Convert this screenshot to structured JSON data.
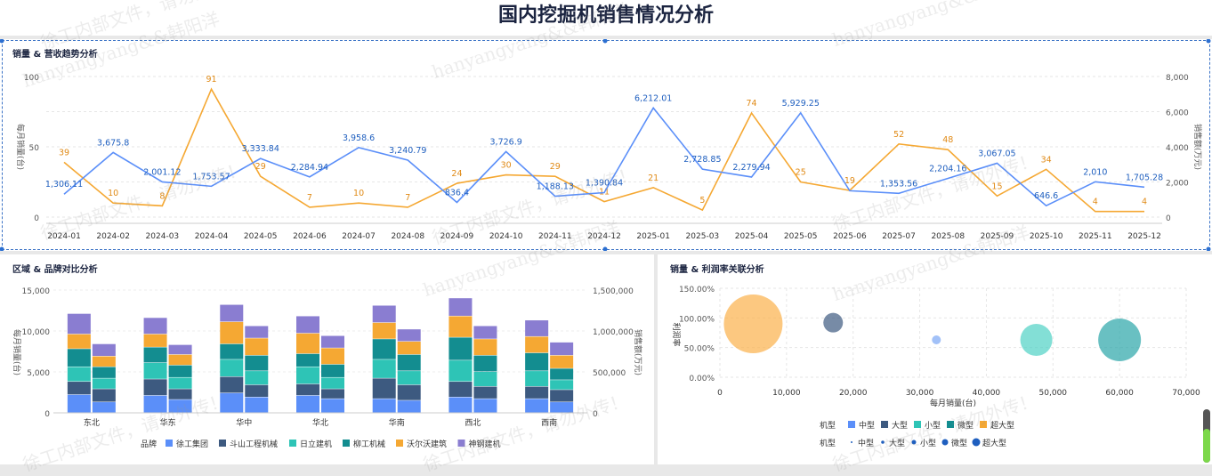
{
  "page": {
    "title": "国内挖掘机销售情况分析"
  },
  "panels": {
    "trend": {
      "title": "销量 & 营收趋势分析",
      "y_left_label": "每月销量(台)",
      "y_right_label": "销售额(万元)"
    },
    "region": {
      "title": "区域 & 品牌对比分析",
      "y_left_label": "每月销量(台)",
      "y_right_label": "销售额(万元)",
      "legend_title": "品牌"
    },
    "bubble": {
      "title": "销量 & 利润率关联分析",
      "x_label": "每月销量(台)",
      "y_label": "利润率",
      "legend_title": "机型"
    }
  },
  "watermarks": [
    "徐工内部文件，请勿外传！",
    "hanyangyang&&韩阳洋"
  ],
  "colors": {
    "volume": "#f5a833",
    "revenue": "#5b8ff9"
  },
  "chart_data": [
    {
      "type": "line",
      "title": "销量 & 营收趋势分析",
      "categories": [
        "2024-01",
        "2024-02",
        "2024-03",
        "2024-04",
        "2024-05",
        "2024-06",
        "2024-07",
        "2024-08",
        "2024-09",
        "2024-10",
        "2024-11",
        "2024-12",
        "2025-01",
        "2025-03",
        "2025-04",
        "2025-05",
        "2025-06",
        "2025-07",
        "2025-08",
        "2025-09",
        "2025-10",
        "2025-11",
        "2025-12"
      ],
      "ylabel": "每月销量(台)",
      "y2label": "销售额(万元)",
      "ylim": [
        0,
        100
      ],
      "y2lim": [
        0,
        8000
      ],
      "yticks": [
        "0",
        "50",
        "100"
      ],
      "y2ticks": [
        "0",
        "2,000",
        "4,000",
        "6,000",
        "8,000"
      ],
      "series": [
        {
          "axis": "left",
          "color": "#f5a833",
          "values": [
            39,
            10,
            8,
            91,
            29,
            7,
            10,
            7,
            24,
            30,
            29,
            11,
            21,
            5,
            74,
            25,
            19,
            52,
            48,
            15,
            34,
            4,
            4
          ],
          "labels": [
            "39",
            "10",
            "8",
            "91",
            "29",
            "7",
            "10",
            "7",
            "24",
            "30",
            "29",
            "11",
            "21",
            "5",
            "74",
            "25",
            "19",
            "52",
            "48",
            "15",
            "34",
            "4",
            "4"
          ]
        },
        {
          "axis": "right",
          "color": "#5b8ff9",
          "values": [
            1306.11,
            3675.8,
            2001.12,
            1753.57,
            3333.84,
            2284.94,
            3958.6,
            3240.79,
            836.4,
            3726.9,
            1188.13,
            1390.84,
            6212.01,
            2728.85,
            2279.94,
            5929.25,
            1500,
            1353.56,
            2204.16,
            3067.05,
            646.6,
            2010,
            1705.28
          ],
          "labels": [
            "1,306.11",
            "3,675.8",
            "2,001.12",
            "1,753.57",
            "3,333.84",
            "2,284.94",
            "3,958.6",
            "3,240.79",
            "836.4",
            "3,726.9",
            "1,188.13",
            "1,390.84",
            "6,212.01",
            "2,728.85",
            "2,279.94",
            "5,929.25",
            "",
            "1,353.56",
            "2,204.16",
            "3,067.05",
            "646.6",
            "2,010",
            "1,705.28"
          ]
        }
      ]
    },
    {
      "type": "bar",
      "title": "区域 & 品牌对比分析",
      "categories": [
        "东北",
        "华东",
        "华中",
        "华北",
        "华南",
        "西北",
        "西南"
      ],
      "ylabel": "每月销量(台)",
      "y2label": "销售额(万元)",
      "ylim": [
        0,
        15000
      ],
      "y2lim": [
        0,
        1500000
      ],
      "yticks": [
        "0",
        "5,000",
        "10,000",
        "15,000"
      ],
      "y2ticks": [
        "0",
        "500,000",
        "1,000,000",
        "1,500,000"
      ],
      "series": [
        {
          "name": "徐工集团",
          "color": "#5b8ff9",
          "volume": [
            2200,
            2100,
            2400,
            2100,
            1700,
            1900,
            1700
          ],
          "revenue": [
            130000,
            160000,
            190000,
            170000,
            150000,
            170000,
            130000
          ]
        },
        {
          "name": "斗山工程机械",
          "color": "#3d5a80",
          "volume": [
            1600,
            2000,
            2000,
            1400,
            2500,
            1900,
            1500
          ],
          "revenue": [
            160000,
            130000,
            150000,
            120000,
            190000,
            150000,
            150000
          ]
        },
        {
          "name": "日立建机",
          "color": "#2ec4b6",
          "volume": [
            1800,
            2000,
            2100,
            2100,
            2300,
            2600,
            1900
          ],
          "revenue": [
            130000,
            140000,
            170000,
            140000,
            170000,
            180000,
            120000
          ]
        },
        {
          "name": "柳工机械",
          "color": "#138d90",
          "volume": [
            2200,
            1900,
            1900,
            1600,
            2500,
            2800,
            2200
          ],
          "revenue": [
            140000,
            150000,
            190000,
            160000,
            200000,
            200000,
            140000
          ]
        },
        {
          "name": "沃尔沃建筑",
          "color": "#f5a833",
          "volume": [
            1800,
            1600,
            2700,
            2500,
            2000,
            2600,
            2000
          ],
          "revenue": [
            130000,
            130000,
            210000,
            200000,
            160000,
            200000,
            160000
          ]
        },
        {
          "name": "神钢建机",
          "color": "#8a7dd1",
          "volume": [
            2500,
            2000,
            2100,
            2100,
            2100,
            2200,
            2000
          ],
          "revenue": [
            150000,
            120000,
            150000,
            150000,
            150000,
            160000,
            160000
          ]
        }
      ]
    },
    {
      "type": "scatter",
      "title": "销量 & 利润率关联分析",
      "xlabel": "每月销量(台)",
      "ylabel": "利润率",
      "xlim": [
        0,
        70000
      ],
      "ylim": [
        0,
        150
      ],
      "xticks": [
        "0",
        "10,000",
        "20,000",
        "30,000",
        "40,000",
        "50,000",
        "60,000",
        "70,000"
      ],
      "yticks": [
        "0.00%",
        "50.00%",
        "100.00%",
        "150.00%"
      ],
      "series": [
        {
          "name": "中型",
          "color": "#5b8ff9",
          "points": []
        },
        {
          "name": "大型",
          "color": "#3d5a80",
          "points": [
            {
              "x": 17000,
              "y": 92,
              "r": 11
            }
          ]
        },
        {
          "name": "小型",
          "color": "#4fd1c5",
          "points": [
            {
              "x": 47500,
              "y": 63,
              "r": 18
            }
          ]
        },
        {
          "name": "微型",
          "color": "#2aa5a8",
          "points": [
            {
              "x": 60000,
              "y": 63,
              "r": 24
            }
          ]
        },
        {
          "name": "超大型",
          "color": "#fbb04a",
          "points": [
            {
              "x": 5000,
              "y": 90,
              "r": 33
            }
          ]
        },
        {
          "name": "",
          "color": "#7aa7f5",
          "points": [
            {
              "x": 32500,
              "y": 63,
              "r": 5
            }
          ]
        }
      ],
      "legend_rows": [
        {
          "title": "机型",
          "kind": "square",
          "items": [
            "中型",
            "大型",
            "小型",
            "微型",
            "超大型"
          ],
          "colors": [
            "#5b8ff9",
            "#3d5a80",
            "#2ec4b6",
            "#138d90",
            "#f5a833"
          ]
        },
        {
          "title": "机型",
          "kind": "dot",
          "items": [
            "中型",
            "大型",
            "小型",
            "微型",
            "超大型"
          ],
          "sizes": [
            1,
            1.8,
            2.5,
            3.5,
            4.5
          ]
        }
      ]
    }
  ]
}
